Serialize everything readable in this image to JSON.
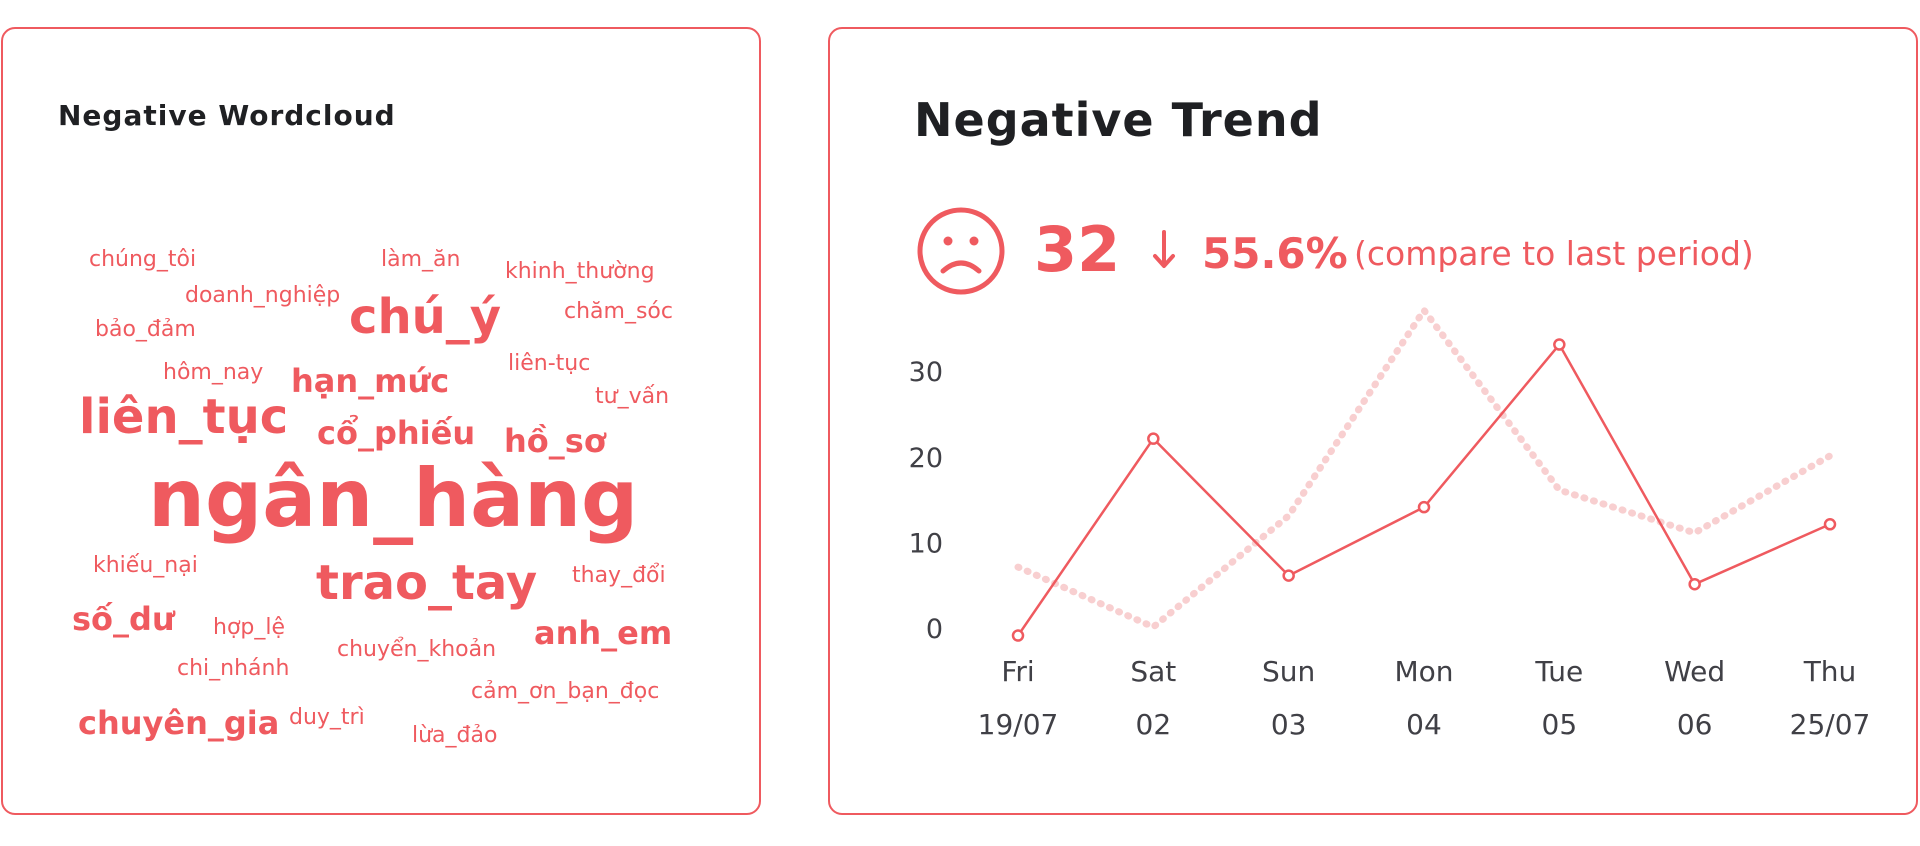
{
  "wordcloud": {
    "title": "Negative Wordcloud",
    "words": [
      {
        "text": "chúng_tôi",
        "weight": 1
      },
      {
        "text": "làm_ăn",
        "weight": 1
      },
      {
        "text": "khinh_thường",
        "weight": 1
      },
      {
        "text": "doanh_nghiệp",
        "weight": 1
      },
      {
        "text": "chú_ý",
        "weight": 3
      },
      {
        "text": "chăm_sóc",
        "weight": 1
      },
      {
        "text": "bảo_đảm",
        "weight": 1
      },
      {
        "text": "liên-tục",
        "weight": 1
      },
      {
        "text": "hôm_nay",
        "weight": 1
      },
      {
        "text": "hạn_mức",
        "weight": 2
      },
      {
        "text": "tư_vấn",
        "weight": 1
      },
      {
        "text": "liên_tục",
        "weight": 3
      },
      {
        "text": "cổ_phiếu",
        "weight": 2
      },
      {
        "text": "hồ_sơ",
        "weight": 2
      },
      {
        "text": "ngân_hàng",
        "weight": 5
      },
      {
        "text": "khiếu_nại",
        "weight": 1
      },
      {
        "text": "trao_tay",
        "weight": 3
      },
      {
        "text": "thay_đổi",
        "weight": 1
      },
      {
        "text": "số_dư",
        "weight": 2
      },
      {
        "text": "hợp_lệ",
        "weight": 1
      },
      {
        "text": "anh_em",
        "weight": 2
      },
      {
        "text": "chuyển_khoản",
        "weight": 1
      },
      {
        "text": "chi_nhánh",
        "weight": 1
      },
      {
        "text": "cảm_ơn_bạn_đọc",
        "weight": 1
      },
      {
        "text": "chuyên_gia",
        "weight": 2
      },
      {
        "text": "duy_trì",
        "weight": 1
      },
      {
        "text": "lừa_đảo",
        "weight": 1
      }
    ],
    "color": "#ef5a5f"
  },
  "trend": {
    "title": "Negative Trend",
    "count": "32",
    "change_pct": "55.6%",
    "compare_note": "(compare to last period)",
    "icons": {
      "mood": "sad-face-icon",
      "direction": "arrow-down-icon"
    },
    "accent_color": "#ef5a5f"
  },
  "chart_data": {
    "type": "line",
    "categories": [
      "Fri",
      "Sat",
      "Sun",
      "Mon",
      "Tue",
      "Wed",
      "Thu"
    ],
    "sublabels": [
      "19/07",
      "02",
      "03",
      "04",
      "05",
      "06",
      "25/07"
    ],
    "yticks": [
      0,
      10,
      20,
      30
    ],
    "ylim": [
      0,
      35
    ],
    "series": [
      {
        "values": [
          -1,
          22,
          6,
          14,
          33,
          5,
          12
        ],
        "style": "solid",
        "color": "#ef5a5f"
      },
      {
        "values": [
          7,
          0,
          13,
          37,
          16,
          11,
          20
        ],
        "style": "dotted",
        "color": "#f8cfd0"
      }
    ],
    "grid": false,
    "legend": "none"
  }
}
